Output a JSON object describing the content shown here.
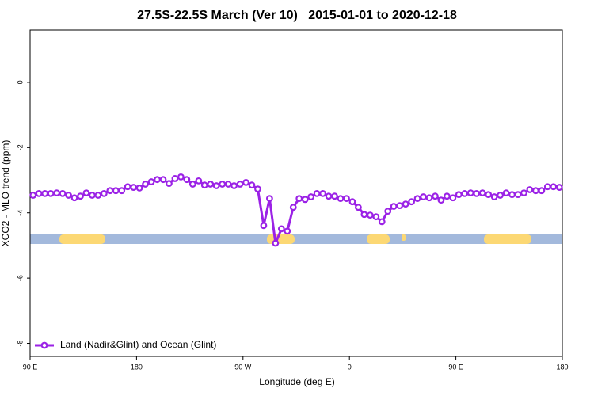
{
  "chart_data": {
    "type": "line",
    "title": "27.5S-22.5S March (Ver 10)   2015-01-01 to 2020-12-18",
    "x_label": "Longitude (deg E)",
    "y_label": "XCO2 - MLO trend (ppm)",
    "x": [
      92.5,
      97.5,
      102.5,
      107.5,
      112.5,
      117.5,
      122.5,
      127.5,
      132.5,
      137.5,
      142.5,
      147.5,
      152.5,
      157.5,
      162.5,
      167.5,
      172.5,
      177.5,
      182.5,
      187.5,
      192.5,
      197.5,
      202.5,
      207.5,
      212.5,
      217.5,
      222.5,
      227.5,
      232.5,
      237.5,
      242.5,
      247.5,
      252.5,
      257.5,
      262.5,
      267.5,
      272.5,
      277.5,
      282.5,
      287.5,
      292.5,
      297.5,
      302.5,
      307.5,
      312.5,
      317.5,
      322.5,
      327.5,
      332.5,
      337.5,
      342.5,
      347.5,
      352.5,
      357.5,
      362.5,
      367.5,
      372.5,
      377.5,
      382.5,
      387.5,
      392.5,
      397.5,
      402.5,
      407.5,
      412.5,
      417.5,
      422.5,
      427.5,
      432.5,
      437.5,
      442.5,
      447.5,
      452.5,
      457.5,
      462.5,
      467.5,
      472.5,
      477.5,
      482.5,
      487.5,
      492.5,
      497.5,
      502.5,
      507.5,
      512.5,
      517.5,
      522.5,
      527.5,
      532.5,
      537.5
    ],
    "series": [
      {
        "name": "Land (Nadir&Glint) and Ocean (Glint)",
        "color": "#9b22e6",
        "values": [
          -3.46,
          -3.41,
          -3.41,
          -3.41,
          -3.39,
          -3.41,
          -3.46,
          -3.54,
          -3.49,
          -3.39,
          -3.46,
          -3.46,
          -3.41,
          -3.32,
          -3.32,
          -3.32,
          -3.2,
          -3.22,
          -3.24,
          -3.12,
          -3.05,
          -2.98,
          -2.98,
          -3.1,
          -2.95,
          -2.9,
          -2.98,
          -3.12,
          -3.02,
          -3.15,
          -3.12,
          -3.17,
          -3.12,
          -3.12,
          -3.17,
          -3.12,
          -3.07,
          -3.15,
          -3.27,
          -4.39,
          -3.56,
          -4.93,
          -4.49,
          -4.56,
          -3.83,
          -3.56,
          -3.59,
          -3.51,
          -3.41,
          -3.41,
          -3.49,
          -3.49,
          -3.56,
          -3.56,
          -3.66,
          -3.83,
          -4.05,
          -4.07,
          -4.12,
          -4.27,
          -3.95,
          -3.8,
          -3.78,
          -3.73,
          -3.66,
          -3.56,
          -3.51,
          -3.54,
          -3.49,
          -3.61,
          -3.49,
          -3.54,
          -3.44,
          -3.41,
          -3.39,
          -3.41,
          -3.39,
          -3.44,
          -3.51,
          -3.46,
          -3.39,
          -3.44,
          -3.44,
          -3.39,
          -3.29,
          -3.32,
          -3.32,
          -3.2,
          -3.2,
          -3.22
        ]
      }
    ],
    "xlim": [
      90,
      540
    ],
    "xticks": [
      {
        "value": 90,
        "label": "90 E"
      },
      180,
      {
        "value": 270,
        "label": "90 W"
      },
      {
        "value": 360,
        "label": "0"
      },
      {
        "value": 450,
        "label": "90 E"
      },
      {
        "value": 540,
        "label": "180"
      }
    ],
    "ylim": [
      -8.4,
      1.6
    ],
    "yticks": [
      0,
      -2,
      -4,
      -6,
      -8
    ],
    "legend": "bottom-left"
  }
}
